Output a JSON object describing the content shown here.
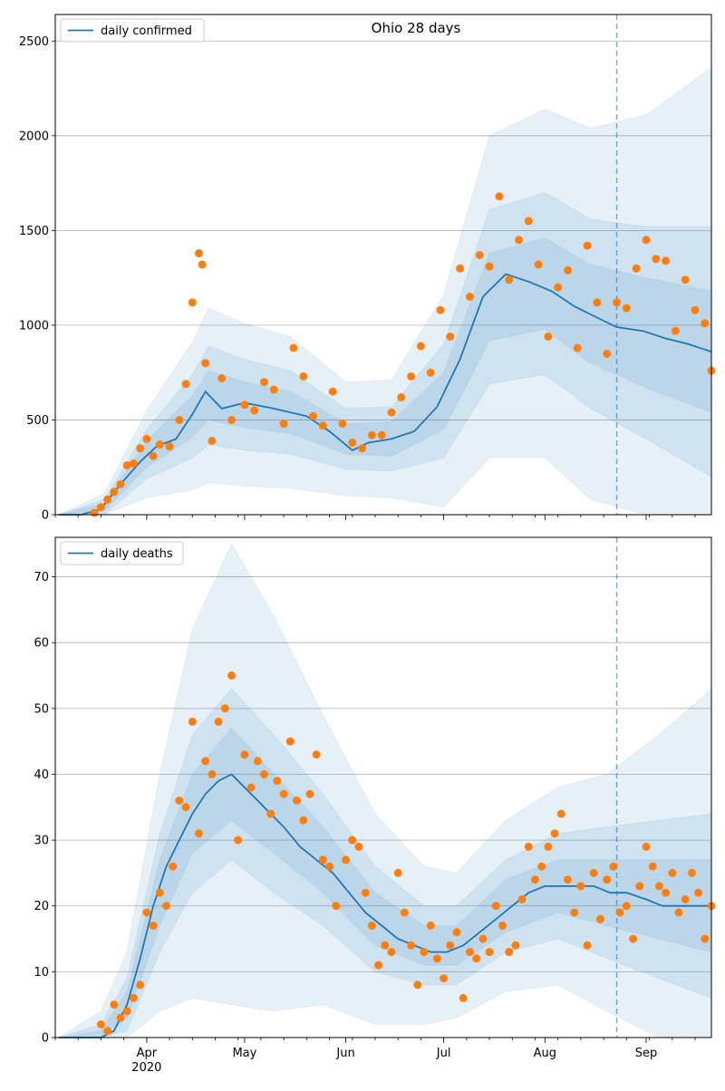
{
  "chart_data": [
    {
      "type": "line",
      "title": "Ohio 28 days",
      "xlabel": "",
      "ylabel": "",
      "ylim": [
        0,
        2640
      ],
      "yticks": [
        0,
        500,
        1000,
        1500,
        2000,
        2500
      ],
      "grid": "horizontal",
      "legend_position": "top-left",
      "forecast_marker_date": "2020-08-23",
      "colors": {
        "line": "#1f77b4",
        "points": "#ff7f0e",
        "band": "#1f77b4",
        "marker": "#1f77b4"
      },
      "series": [
        {
          "name": "daily confirmed",
          "kind": "line",
          "x": [
            "2020-03-05",
            "2020-03-12",
            "2020-03-18",
            "2020-03-22",
            "2020-03-26",
            "2020-03-30",
            "2020-04-04",
            "2020-04-10",
            "2020-04-15",
            "2020-04-19",
            "2020-04-24",
            "2020-05-01",
            "2020-05-10",
            "2020-05-20",
            "2020-05-27",
            "2020-06-03",
            "2020-06-08",
            "2020-06-15",
            "2020-06-22",
            "2020-06-29",
            "2020-07-06",
            "2020-07-13",
            "2020-07-20",
            "2020-07-27",
            "2020-08-03",
            "2020-08-10",
            "2020-08-17",
            "2020-08-23",
            "2020-08-31",
            "2020-09-07",
            "2020-09-14",
            "2020-09-21"
          ],
          "y": [
            0,
            0,
            30,
            120,
            200,
            280,
            360,
            400,
            530,
            650,
            560,
            590,
            560,
            520,
            440,
            340,
            380,
            400,
            440,
            570,
            820,
            1150,
            1270,
            1230,
            1180,
            1100,
            1040,
            990,
            970,
            930,
            900,
            860
          ],
          "bands": {
            "x": [
              "2020-03-05",
              "2020-03-19",
              "2020-04-01",
              "2020-04-15",
              "2020-04-20",
              "2020-05-01",
              "2020-05-15",
              "2020-06-01",
              "2020-06-15",
              "2020-07-01",
              "2020-07-15",
              "2020-08-01",
              "2020-08-15",
              "2020-09-01",
              "2020-09-21"
            ],
            "center": [
              0,
              40,
              320,
              520,
              630,
              580,
              540,
              400,
              400,
              600,
              1150,
              1220,
              1060,
              960,
              860
            ],
            "inner": [
              0,
              20,
              70,
              110,
              130,
              120,
              110,
              80,
              90,
              150,
              230,
              240,
              260,
              290,
              320
            ],
            "mid": [
              0,
              40,
              130,
              220,
              260,
              240,
              220,
              160,
              170,
              300,
              460,
              480,
              500,
              560,
              660
            ],
            "outer": [
              0,
              70,
              230,
              390,
              460,
              430,
              400,
              300,
              310,
              560,
              850,
              920,
              980,
              1150,
              1500
            ]
          }
        },
        {
          "name": "",
          "kind": "scatter",
          "x": [
            "2020-03-16",
            "2020-03-18",
            "2020-03-20",
            "2020-03-22",
            "2020-03-24",
            "2020-03-26",
            "2020-03-28",
            "2020-03-30",
            "2020-04-01",
            "2020-04-03",
            "2020-04-05",
            "2020-04-08",
            "2020-04-11",
            "2020-04-13",
            "2020-04-15",
            "2020-04-17",
            "2020-04-18",
            "2020-04-19",
            "2020-04-21",
            "2020-04-24",
            "2020-04-27",
            "2020-05-01",
            "2020-05-04",
            "2020-05-07",
            "2020-05-10",
            "2020-05-13",
            "2020-05-16",
            "2020-05-19",
            "2020-05-22",
            "2020-05-25",
            "2020-05-28",
            "2020-05-31",
            "2020-06-03",
            "2020-06-06",
            "2020-06-09",
            "2020-06-12",
            "2020-06-15",
            "2020-06-18",
            "2020-06-21",
            "2020-06-24",
            "2020-06-27",
            "2020-06-30",
            "2020-07-03",
            "2020-07-06",
            "2020-07-09",
            "2020-07-12",
            "2020-07-15",
            "2020-07-18",
            "2020-07-21",
            "2020-07-24",
            "2020-07-27",
            "2020-07-30",
            "2020-08-02",
            "2020-08-05",
            "2020-08-08",
            "2020-08-11",
            "2020-08-14",
            "2020-08-17",
            "2020-08-20",
            "2020-08-23",
            "2020-08-26",
            "2020-08-29",
            "2020-09-01",
            "2020-09-04",
            "2020-09-07",
            "2020-09-10",
            "2020-09-13",
            "2020-09-16",
            "2020-09-19",
            "2020-09-21"
          ],
          "y": [
            10,
            40,
            80,
            120,
            160,
            260,
            270,
            350,
            400,
            310,
            370,
            360,
            500,
            690,
            1120,
            1380,
            1320,
            800,
            390,
            720,
            500,
            580,
            550,
            700,
            660,
            480,
            880,
            730,
            520,
            470,
            650,
            480,
            380,
            350,
            420,
            420,
            540,
            620,
            730,
            890,
            750,
            1080,
            940,
            1300,
            1150,
            1370,
            1310,
            1680,
            1240,
            1450,
            1550,
            1320,
            940,
            1200,
            1290,
            880,
            1420,
            1120,
            850,
            1120,
            1090,
            1300,
            1450,
            1350,
            1340,
            970,
            1240,
            1080,
            1010,
            760
          ]
        }
      ]
    },
    {
      "type": "line",
      "title": "",
      "xlabel": "",
      "ylabel": "",
      "ylim": [
        0,
        76
      ],
      "yticks": [
        0,
        10,
        20,
        30,
        40,
        50,
        60,
        70
      ],
      "grid": "horizontal",
      "legend_position": "top-left",
      "forecast_marker_date": "2020-08-23",
      "xtick_labels": [
        "Apr\n2020",
        "May",
        "Jun",
        "Jul",
        "Aug",
        "Sep"
      ],
      "xtick_dates": [
        "2020-04-01",
        "2020-05-01",
        "2020-06-01",
        "2020-07-01",
        "2020-08-01",
        "2020-09-01"
      ],
      "colors": {
        "line": "#1f77b4",
        "points": "#ff7f0e",
        "band": "#1f77b4",
        "marker": "#1f77b4"
      },
      "series": [
        {
          "name": "daily deaths",
          "kind": "line",
          "x": [
            "2020-03-05",
            "2020-03-10",
            "2020-03-15",
            "2020-03-18",
            "2020-03-22",
            "2020-03-26",
            "2020-03-30",
            "2020-04-03",
            "2020-04-07",
            "2020-04-11",
            "2020-04-15",
            "2020-04-19",
            "2020-04-23",
            "2020-04-27",
            "2020-05-01",
            "2020-05-05",
            "2020-05-09",
            "2020-05-13",
            "2020-05-18",
            "2020-05-23",
            "2020-05-28",
            "2020-06-02",
            "2020-06-07",
            "2020-06-12",
            "2020-06-17",
            "2020-06-22",
            "2020-06-27",
            "2020-07-02",
            "2020-07-07",
            "2020-07-12",
            "2020-07-17",
            "2020-07-22",
            "2020-07-27",
            "2020-08-01",
            "2020-08-06",
            "2020-08-11",
            "2020-08-16",
            "2020-08-21",
            "2020-08-26",
            "2020-09-01",
            "2020-09-06",
            "2020-09-11",
            "2020-09-16",
            "2020-09-21"
          ],
          "y": [
            0,
            0,
            0,
            0,
            1,
            5,
            12,
            20,
            26,
            30,
            34,
            37,
            39,
            40,
            38,
            36,
            34,
            32,
            29,
            27,
            25,
            22,
            19,
            17,
            15,
            14,
            13,
            13,
            14,
            16,
            18,
            20,
            22,
            23,
            23,
            23,
            23,
            22,
            22,
            21,
            20,
            20,
            20,
            20
          ],
          "bands": {
            "x": [
              "2020-03-05",
              "2020-03-18",
              "2020-03-26",
              "2020-04-05",
              "2020-04-15",
              "2020-04-27",
              "2020-05-10",
              "2020-05-25",
              "2020-06-10",
              "2020-06-25",
              "2020-07-05",
              "2020-07-20",
              "2020-08-05",
              "2020-08-20",
              "2020-09-05",
              "2020-09-21"
            ],
            "center": [
              0,
              0,
              5,
              22,
              34,
              40,
              34,
              27,
              18,
              14,
              14,
              20,
              23,
              22,
              21,
              20
            ],
            "inner": [
              0,
              1,
              2,
              5,
              6,
              7,
              6,
              5,
              4,
              3,
              3,
              4,
              4,
              5,
              6,
              7
            ],
            "mid": [
              0,
              2,
              4,
              9,
              12,
              13,
              12,
              10,
              8,
              6,
              6,
              7,
              8,
              10,
              12,
              14
            ],
            "outer": [
              0,
              4,
              8,
              18,
              28,
              35,
              30,
              22,
              16,
              12,
              11,
              13,
              15,
              18,
              25,
              33
            ]
          }
        },
        {
          "name": "",
          "kind": "scatter",
          "x": [
            "2020-03-18",
            "2020-03-20",
            "2020-03-22",
            "2020-03-24",
            "2020-03-26",
            "2020-03-28",
            "2020-03-30",
            "2020-04-01",
            "2020-04-03",
            "2020-04-05",
            "2020-04-07",
            "2020-04-09",
            "2020-04-11",
            "2020-04-13",
            "2020-04-15",
            "2020-04-17",
            "2020-04-19",
            "2020-04-21",
            "2020-04-23",
            "2020-04-25",
            "2020-04-27",
            "2020-04-29",
            "2020-05-01",
            "2020-05-03",
            "2020-05-05",
            "2020-05-07",
            "2020-05-09",
            "2020-05-11",
            "2020-05-13",
            "2020-05-15",
            "2020-05-17",
            "2020-05-19",
            "2020-05-21",
            "2020-05-23",
            "2020-05-25",
            "2020-05-27",
            "2020-05-29",
            "2020-06-01",
            "2020-06-03",
            "2020-06-05",
            "2020-06-07",
            "2020-06-09",
            "2020-06-11",
            "2020-06-13",
            "2020-06-15",
            "2020-06-17",
            "2020-06-19",
            "2020-06-21",
            "2020-06-23",
            "2020-06-25",
            "2020-06-27",
            "2020-06-29",
            "2020-07-01",
            "2020-07-03",
            "2020-07-05",
            "2020-07-07",
            "2020-07-09",
            "2020-07-11",
            "2020-07-13",
            "2020-07-15",
            "2020-07-17",
            "2020-07-19",
            "2020-07-21",
            "2020-07-23",
            "2020-07-25",
            "2020-07-27",
            "2020-07-29",
            "2020-07-31",
            "2020-08-02",
            "2020-08-04",
            "2020-08-06",
            "2020-08-08",
            "2020-08-10",
            "2020-08-12",
            "2020-08-14",
            "2020-08-16",
            "2020-08-18",
            "2020-08-20",
            "2020-08-22",
            "2020-08-24",
            "2020-08-26",
            "2020-08-28",
            "2020-08-30",
            "2020-09-01",
            "2020-09-03",
            "2020-09-05",
            "2020-09-07",
            "2020-09-09",
            "2020-09-11",
            "2020-09-13",
            "2020-09-15",
            "2020-09-17",
            "2020-09-19",
            "2020-09-21"
          ],
          "y": [
            2,
            1,
            5,
            3,
            4,
            6,
            8,
            19,
            17,
            22,
            20,
            26,
            36,
            35,
            48,
            31,
            42,
            40,
            48,
            50,
            55,
            30,
            43,
            38,
            42,
            40,
            34,
            39,
            37,
            45,
            36,
            33,
            37,
            43,
            27,
            26,
            20,
            27,
            30,
            29,
            22,
            17,
            11,
            14,
            13,
            25,
            19,
            14,
            8,
            13,
            17,
            12,
            9,
            14,
            16,
            6,
            13,
            12,
            15,
            13,
            20,
            17,
            13,
            14,
            21,
            29,
            24,
            26,
            29,
            31,
            34,
            24,
            19,
            23,
            14,
            25,
            18,
            24,
            26,
            19,
            20,
            15,
            23,
            29,
            26,
            23,
            22,
            25,
            19,
            21,
            25,
            22,
            15,
            20
          ]
        }
      ]
    }
  ]
}
